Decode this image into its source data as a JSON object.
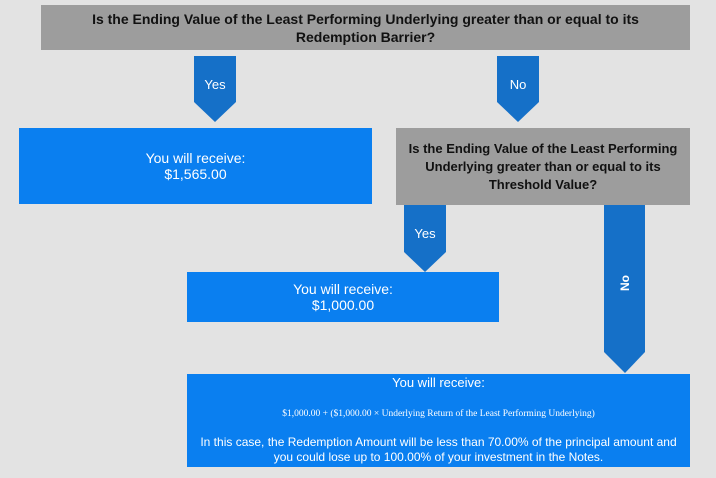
{
  "question1": "Is the Ending Value of the Least Performing Underlying greater than or equal to its Redemption Barrier?",
  "yes1": "Yes",
  "no1": "No",
  "question2": "Is the Ending Value of the Least Performing Underlying greater than or equal to its Threshold Value?",
  "result1": {
    "title": "You will receive:",
    "amount": "$1,565.00"
  },
  "yes2": "Yes",
  "no2": "No",
  "result2": {
    "title": "You will receive:",
    "amount": "$1,000.00"
  },
  "result3": {
    "title": "You will receive:",
    "formula": "$1,000.00 + ($1,000.00 × Underlying Return of the Least Performing Underlying)",
    "note": "In this case, the Redemption Amount will be less than 70.00% of the principal amount and you could lose up to 100.00% of your investment in the Notes."
  },
  "colors": {
    "question_gray": "#9d9d9d",
    "result_blue": "#0a7ff0",
    "arrow_blue": "#1570c8",
    "background": "#e3e3e3"
  }
}
